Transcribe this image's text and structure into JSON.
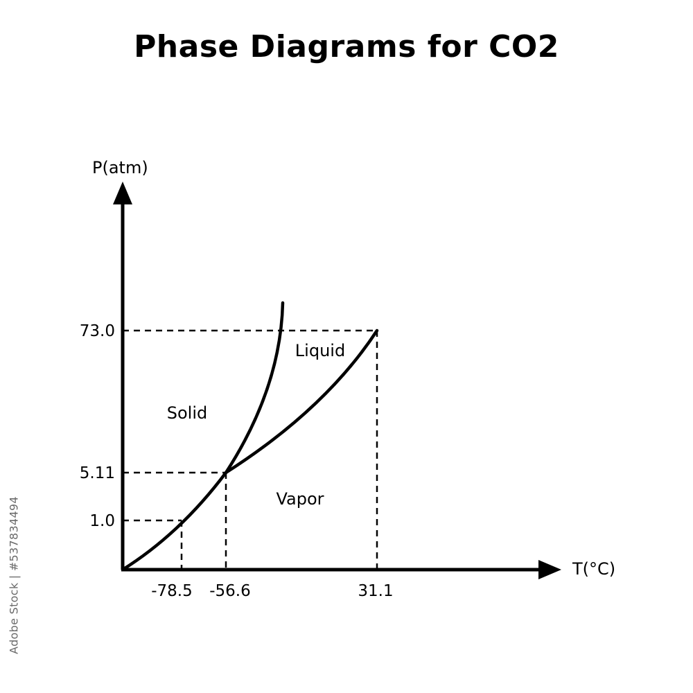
{
  "title": "Phase Diagrams for CO2",
  "axes": {
    "y_label": "P(atm)",
    "x_label": "T(°C)"
  },
  "temperature_ticks": [
    "-78.5",
    "-56.6",
    "31.1"
  ],
  "pressure_ticks": [
    "73.0",
    "5.11",
    "1.0"
  ],
  "regions": {
    "solid": "Solid",
    "liquid": "Liquid",
    "vapor": "Vapor"
  },
  "key_points": {
    "sublimation_point": {
      "T": -78.5,
      "P": 1.0
    },
    "triple_point": {
      "T": -56.6,
      "P": 5.11
    },
    "critical_point": {
      "T": 31.1,
      "P": 73.0
    }
  },
  "colors": {
    "line": "#000000",
    "background": "#ffffff"
  },
  "stock_id": "Adobe Stock | #537834494"
}
